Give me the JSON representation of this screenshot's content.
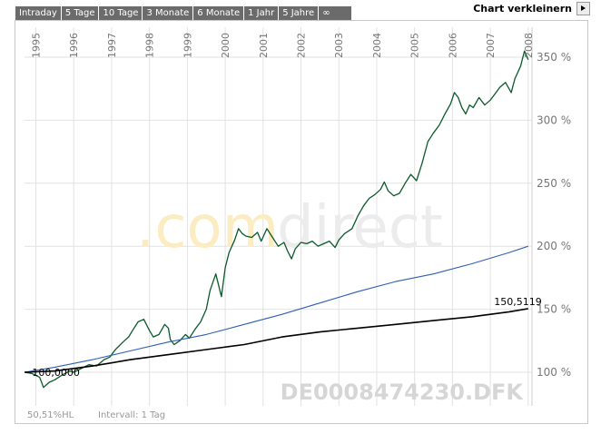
{
  "tabs": [
    {
      "label": "Intraday"
    },
    {
      "label": "5 Tage"
    },
    {
      "label": "10 Tage"
    },
    {
      "label": "3 Monate"
    },
    {
      "label": "6 Monate"
    },
    {
      "label": "1 Jahr"
    },
    {
      "label": "5 Jahre"
    },
    {
      "label": "∞"
    }
  ],
  "shrink_label": "Chart verkleinern",
  "colors": {
    "main": "#0c5a2a",
    "blue": "#2e5fb5",
    "black": "#000000",
    "grid": "#e2e2e2"
  },
  "chart_data": {
    "type": "line",
    "y_unit": "%",
    "ylim": [
      80,
      360
    ],
    "yticks": [
      {
        "value": 100,
        "label": "100 %"
      },
      {
        "value": 150,
        "label": "150 %"
      },
      {
        "value": 200,
        "label": "200 %"
      },
      {
        "value": 250,
        "label": "250 %"
      },
      {
        "value": 300,
        "label": "300 %"
      },
      {
        "value": 350,
        "label": "350 %"
      }
    ],
    "xlim": [
      1994.7,
      2008.1
    ],
    "xticks": [
      "1995",
      "1996",
      "1997",
      "1998",
      "1999",
      "2000",
      "2001",
      "2002",
      "2003",
      "2004",
      "2005",
      "2006",
      "2007",
      "2008"
    ],
    "grid": true,
    "series": [
      {
        "color_key": "main",
        "x": [
          1994.7,
          1994.9,
          1995.1,
          1995.2,
          1995.35,
          1995.5,
          1995.7,
          1995.9,
          1996.0,
          1996.2,
          1996.4,
          1996.6,
          1996.8,
          1996.95,
          1997.1,
          1997.3,
          1997.45,
          1997.55,
          1997.7,
          1997.85,
          1998.0,
          1998.1,
          1998.25,
          1998.4,
          1998.5,
          1998.55,
          1998.65,
          1998.8,
          1998.95,
          1999.05,
          1999.2,
          1999.35,
          1999.5,
          1999.6,
          1999.75,
          1999.9,
          2000.0,
          2000.1,
          2000.25,
          2000.35,
          2000.45,
          2000.55,
          2000.7,
          2000.85,
          2000.95,
          2001.1,
          2001.25,
          2001.4,
          2001.55,
          2001.65,
          2001.75,
          2001.85,
          2002.0,
          2002.15,
          2002.3,
          2002.45,
          2002.6,
          2002.75,
          2002.9,
          2003.0,
          2003.15,
          2003.35,
          2003.5,
          2003.65,
          2003.8,
          2003.95,
          2004.1,
          2004.2,
          2004.3,
          2004.45,
          2004.6,
          2004.75,
          2004.9,
          2005.05,
          2005.2,
          2005.35,
          2005.5,
          2005.65,
          2005.8,
          2005.95,
          2006.05,
          2006.15,
          2006.25,
          2006.35,
          2006.45,
          2006.55,
          2006.7,
          2006.85,
          2007.0,
          2007.15,
          2007.25,
          2007.4,
          2007.55,
          2007.65,
          2007.8,
          2007.9,
          2008.0
        ],
        "values": [
          100,
          99,
          96,
          88,
          92,
          94,
          98,
          101,
          100,
          103,
          106,
          105,
          110,
          112,
          118,
          124,
          128,
          133,
          140,
          142,
          133,
          128,
          130,
          138,
          135,
          126,
          122,
          125,
          130,
          127,
          134,
          140,
          150,
          165,
          178,
          160,
          183,
          195,
          205,
          214,
          210,
          208,
          207,
          211,
          204,
          214,
          207,
          200,
          203,
          196,
          190,
          198,
          203,
          202,
          204,
          200,
          202,
          204,
          199,
          205,
          210,
          214,
          224,
          232,
          238,
          241,
          245,
          251,
          244,
          240,
          242,
          250,
          257,
          252,
          266,
          283,
          290,
          296,
          305,
          313,
          322,
          318,
          310,
          305,
          312,
          310,
          318,
          312,
          316,
          322,
          326,
          330,
          322,
          333,
          343,
          355,
          348
        ]
      },
      {
        "color_key": "blue",
        "x": [
          1994.7,
          1995.5,
          1996.5,
          1997.5,
          1998.5,
          1999.5,
          2000.5,
          2001.5,
          2002.5,
          2003.5,
          2004.5,
          2005.5,
          2006.5,
          2007.5,
          2008.0
        ],
        "values": [
          100,
          104,
          110,
          117,
          124,
          130,
          138,
          146,
          155,
          164,
          172,
          178,
          186,
          195,
          200
        ]
      },
      {
        "color_key": "black",
        "x": [
          1994.7,
          1995.5,
          1996.5,
          1997.5,
          1998.5,
          1999.5,
          2000.5,
          2001.5,
          2002.5,
          2003.5,
          2004.5,
          2005.5,
          2006.5,
          2007.5,
          2008.0
        ],
        "values": [
          100,
          101,
          105,
          110,
          114,
          118,
          122,
          128,
          132,
          135,
          138,
          141,
          144,
          148,
          150.5
        ]
      }
    ],
    "annotations": [
      {
        "text": "100,0000",
        "x": 1994.9,
        "y": 100
      },
      {
        "text": "150,5119",
        "x": 2007.1,
        "y": 150.5
      }
    ],
    "watermark": "comdirect",
    "symbol": "DE0008474230.DFK",
    "footer_left": "50,51%HL",
    "footer_mid": "Intervall: 1 Tag"
  }
}
